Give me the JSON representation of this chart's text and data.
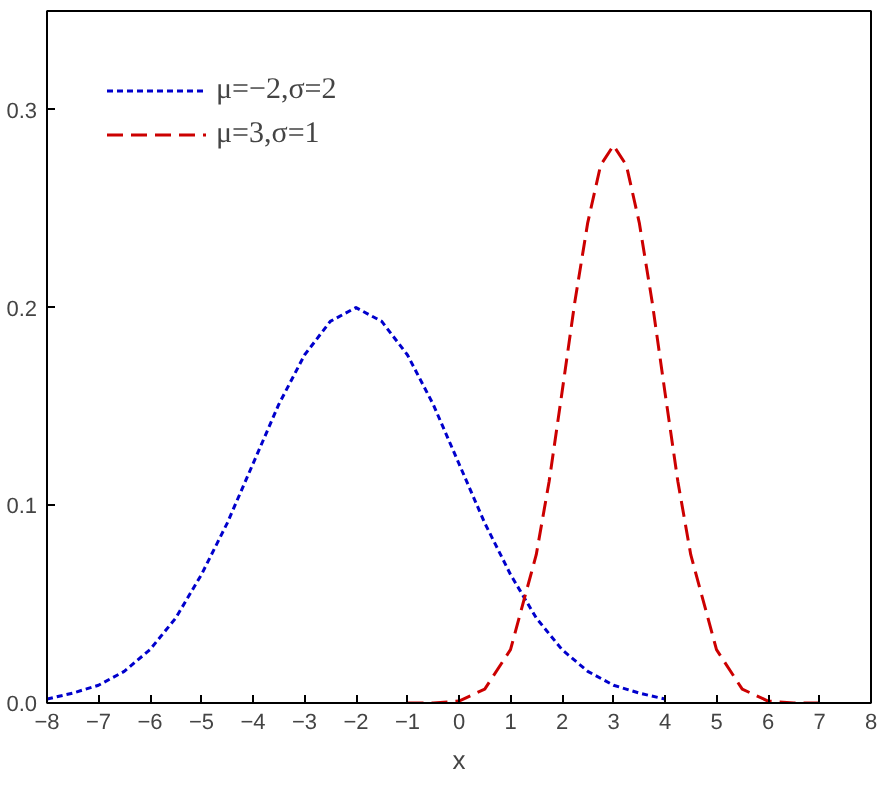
{
  "chart_data": {
    "type": "line",
    "xlabel": "x",
    "xlim": [
      -8,
      8
    ],
    "ylim": [
      0,
      0.35
    ],
    "xticks": [
      -8,
      -7,
      -6,
      -5,
      -4,
      -3,
      -2,
      -1,
      0,
      1,
      2,
      3,
      4,
      5,
      6,
      7,
      8
    ],
    "yticks": [
      {
        "value": 0,
        "label": "0.0"
      },
      {
        "value": 0.1,
        "label": "0.1"
      },
      {
        "value": 0.2,
        "label": "0.2"
      },
      {
        "value": 0.3,
        "label": "0.3"
      }
    ],
    "grid": false,
    "legend": "top left",
    "line_style": "dashed",
    "series": [
      {
        "name": "μ=−2,σ=2",
        "color": "#0000cc",
        "x": [
          -8,
          -7.5,
          -7,
          -6.5,
          -6,
          -5.5,
          -5,
          -4.5,
          -4,
          -3.5,
          -3,
          -2.5,
          -2,
          -1.5,
          -1,
          -0.5,
          0,
          0.5,
          1,
          1.5,
          2,
          2.5,
          3,
          3.5,
          4
        ],
        "values": [
          0.002,
          0.005,
          0.009,
          0.016,
          0.027,
          0.043,
          0.065,
          0.091,
          0.121,
          0.151,
          0.176,
          0.193,
          0.2,
          0.193,
          0.176,
          0.151,
          0.121,
          0.091,
          0.065,
          0.043,
          0.027,
          0.016,
          0.009,
          0.005,
          0.002
        ]
      },
      {
        "name": "μ=3,σ=1",
        "color": "#cc0000",
        "x": [
          -1,
          -0.5,
          0,
          0.5,
          1,
          1.5,
          1.75,
          2,
          2.25,
          2.5,
          2.75,
          3,
          3.25,
          3.5,
          3.75,
          4,
          4.25,
          4.5,
          5,
          5.5,
          6,
          6.5,
          7
        ],
        "values": [
          0,
          0,
          0.001,
          0.007,
          0.027,
          0.075,
          0.112,
          0.157,
          0.203,
          0.243,
          0.272,
          0.282,
          0.272,
          0.243,
          0.203,
          0.157,
          0.112,
          0.075,
          0.027,
          0.007,
          0.001,
          0,
          0
        ]
      }
    ]
  }
}
